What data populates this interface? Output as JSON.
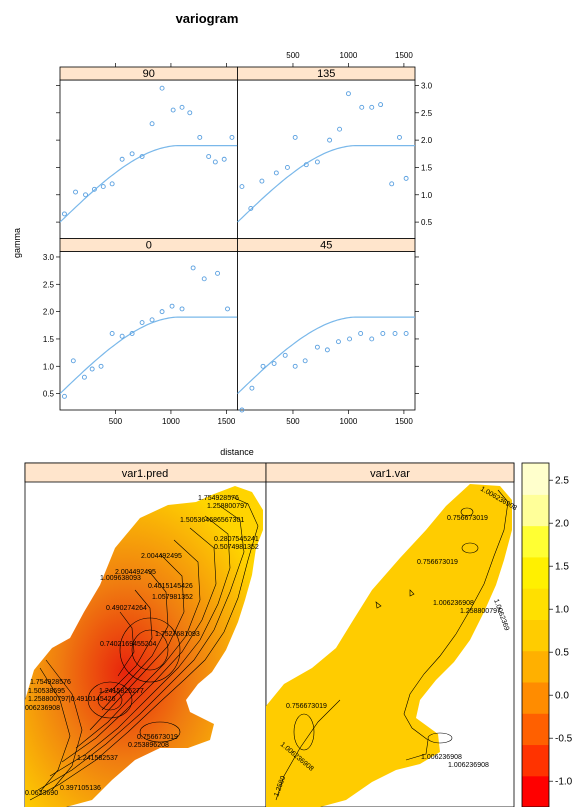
{
  "chart_data": [
    {
      "type": "scatter",
      "title": "variogram",
      "xlabel": "distance",
      "ylabel": "gamma",
      "xlim": [
        0,
        1600
      ],
      "ylim": [
        0.2,
        3.1
      ],
      "x_ticks": [
        500,
        1000,
        1500
      ],
      "y_ticks": [
        0.5,
        1.0,
        1.5,
        2.0,
        2.5,
        3.0
      ],
      "model_curve": {
        "nugget": 0.5,
        "sill": 1.9,
        "range": 1080
      },
      "colors": {
        "points": "#5aa0e0",
        "curve": "#7ab8ea",
        "strip": "#ffe5cc"
      },
      "panels": [
        {
          "label": "90",
          "x": [
            40,
            140,
            230,
            310,
            390,
            470,
            560,
            650,
            740,
            830,
            920,
            1020,
            1100,
            1170,
            1260,
            1340,
            1400,
            1480,
            1550
          ],
          "y": [
            0.65,
            1.05,
            1.0,
            1.1,
            1.15,
            1.2,
            1.65,
            1.75,
            1.7,
            2.3,
            2.95,
            2.55,
            2.6,
            2.5,
            2.05,
            1.7,
            1.6,
            1.65,
            2.05
          ]
        },
        {
          "label": "135",
          "x": [
            40,
            120,
            220,
            350,
            450,
            520,
            620,
            720,
            830,
            920,
            1000,
            1120,
            1210,
            1290,
            1390,
            1460,
            1520
          ],
          "y": [
            1.15,
            0.75,
            1.25,
            1.4,
            1.5,
            2.05,
            1.55,
            1.6,
            2.0,
            2.2,
            2.85,
            2.6,
            2.6,
            2.65,
            1.2,
            2.05,
            1.3
          ]
        },
        {
          "label": "0",
          "x": [
            40,
            120,
            220,
            290,
            370,
            470,
            560,
            650,
            740,
            830,
            920,
            1010,
            1100,
            1200,
            1300,
            1420,
            1510
          ],
          "y": [
            0.45,
            1.1,
            0.8,
            0.95,
            1.0,
            1.6,
            1.55,
            1.6,
            1.8,
            1.85,
            2.0,
            2.1,
            2.05,
            2.8,
            2.6,
            2.7,
            2.05
          ]
        },
        {
          "label": "45",
          "x": [
            40,
            130,
            230,
            330,
            430,
            520,
            610,
            720,
            810,
            910,
            1010,
            1110,
            1210,
            1310,
            1420,
            1520
          ],
          "y": [
            0.2,
            0.6,
            1.0,
            1.05,
            1.2,
            1.0,
            1.1,
            1.35,
            1.3,
            1.45,
            1.5,
            1.6,
            1.5,
            1.6,
            1.6,
            1.6
          ]
        }
      ]
    },
    {
      "type": "heatmap",
      "panels": [
        "var1.pred",
        "var1.var"
      ],
      "colorkey": {
        "ticks": [
          "2.5",
          "2.0",
          "1.5",
          "1.0",
          "0.5",
          "0.0",
          "-0.5",
          "-1.0"
        ],
        "range": [
          -1.3,
          2.7
        ],
        "colors": [
          "#ff0000",
          "#ff3300",
          "#ff6000",
          "#ff8c00",
          "#ffb000",
          "#ffcc00",
          "#ffe000",
          "#fff000",
          "#ffff33",
          "#ffff99",
          "#ffffcc"
        ]
      },
      "pred_fill": {
        "low": "#e8240c",
        "mid": "#f07d10",
        "high": "#ffd400"
      },
      "var_fill": "#ffcc00",
      "contour_labels": {
        "var1.pred": [
          "1.754928576",
          "1.258800797",
          "1.505364686567301",
          "0.2807545241",
          "0.5074981352",
          "2.004492495",
          "2.004492495",
          "1.009638093",
          "0.4015145426",
          "1.057981352",
          "0.490274264",
          "1.7527681093",
          "0.7402169455204",
          "1.754928576",
          "1.50538695",
          "1.258800797|0.4910145426",
          "1.2415825277",
          "006236908",
          "0.756673019",
          "0.253896208",
          "1.241582537",
          "0.0623690",
          "0.397105136"
        ],
        "var1.var": [
          "1.006236908",
          "0.756673019",
          "1.0062369",
          "0.756673019",
          "1.006236908",
          "1.258800797",
          "0.756673019",
          "1.006236908",
          "1.006236908",
          "1.006236908",
          "1.2580"
        ]
      }
    }
  ]
}
